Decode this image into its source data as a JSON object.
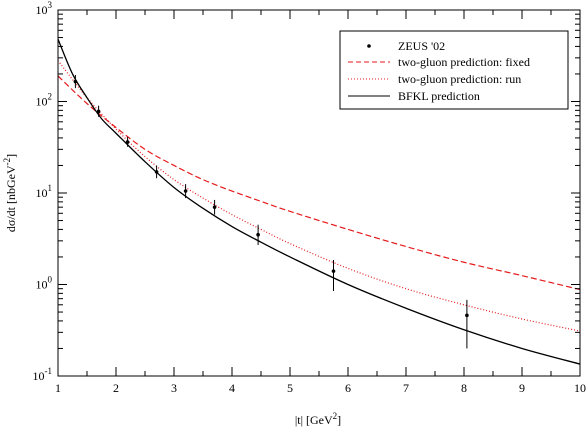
{
  "chart_data": {
    "type": "line",
    "title": "",
    "xlabel": "|t|   [GeV",
    "xlabel_sup": "2",
    "xlabel_close": "]",
    "ylabel": "dσ/dt   [nbGeV",
    "ylabel_sup": "-2",
    "ylabel_close": "]",
    "xlim": [
      1,
      10
    ],
    "ylim": [
      0.1,
      1000
    ],
    "yscale": "log",
    "grid": false,
    "legend_position": "top-right",
    "x_ticks": [
      "1",
      "2",
      "3",
      "4",
      "5",
      "6",
      "7",
      "8",
      "9",
      "10"
    ],
    "y_ticks": [
      {
        "base": "10",
        "exp": "-1",
        "value": 0.1
      },
      {
        "base": "10",
        "exp": "0",
        "value": 1
      },
      {
        "base": "10",
        "exp": "1",
        "value": 10
      },
      {
        "base": "10",
        "exp": "2",
        "value": 100
      },
      {
        "base": "10",
        "exp": "3",
        "value": 1000
      }
    ],
    "data_points": {
      "name": "ZEUS  '02",
      "color": "#000000",
      "points": [
        {
          "x": 1.3,
          "y": 165,
          "lo": 140,
          "hi": 195
        },
        {
          "x": 1.7,
          "y": 78,
          "lo": 68,
          "hi": 90
        },
        {
          "x": 2.2,
          "y": 36,
          "lo": 32,
          "hi": 41
        },
        {
          "x": 2.7,
          "y": 17,
          "lo": 14.5,
          "hi": 20
        },
        {
          "x": 3.2,
          "y": 10.5,
          "lo": 8.8,
          "hi": 12.5
        },
        {
          "x": 3.7,
          "y": 7.0,
          "lo": 5.8,
          "hi": 8.4
        },
        {
          "x": 4.45,
          "y": 3.5,
          "lo": 2.7,
          "hi": 4.5
        },
        {
          "x": 5.75,
          "y": 1.4,
          "lo": 0.85,
          "hi": 1.85
        },
        {
          "x": 8.05,
          "y": 0.46,
          "lo": 0.2,
          "hi": 0.68
        }
      ]
    },
    "series": [
      {
        "name": "two-gluon prediction: fixed",
        "style": "dashed",
        "color": "#e41a1c",
        "x": [
          1,
          1.5,
          2,
          2.5,
          3,
          3.5,
          4,
          4.5,
          5,
          6,
          7,
          8,
          9,
          10
        ],
        "y": [
          190,
          95,
          52,
          30,
          20,
          14,
          10.5,
          8.1,
          6.3,
          4.0,
          2.6,
          1.75,
          1.25,
          0.88
        ]
      },
      {
        "name": "two-gluon prediction: run",
        "style": "dotted",
        "color": "#e41a1c",
        "x": [
          1,
          1.5,
          2,
          2.5,
          3,
          3.5,
          4,
          4.5,
          5,
          6,
          7,
          8,
          9,
          10
        ],
        "y": [
          280,
          110,
          50,
          25,
          14,
          8.8,
          5.8,
          4.0,
          2.8,
          1.5,
          0.9,
          0.6,
          0.42,
          0.31
        ]
      },
      {
        "name": "BFKL prediction",
        "style": "solid",
        "color": "#000000",
        "x": [
          1,
          1.25,
          1.5,
          1.75,
          2,
          2.5,
          3,
          3.5,
          4,
          4.5,
          5,
          6,
          7,
          8,
          9,
          10
        ],
        "y": [
          480,
          200,
          110,
          65,
          45,
          22,
          11.5,
          6.8,
          4.3,
          2.9,
          2.0,
          1.0,
          0.55,
          0.32,
          0.2,
          0.135
        ]
      }
    ]
  }
}
